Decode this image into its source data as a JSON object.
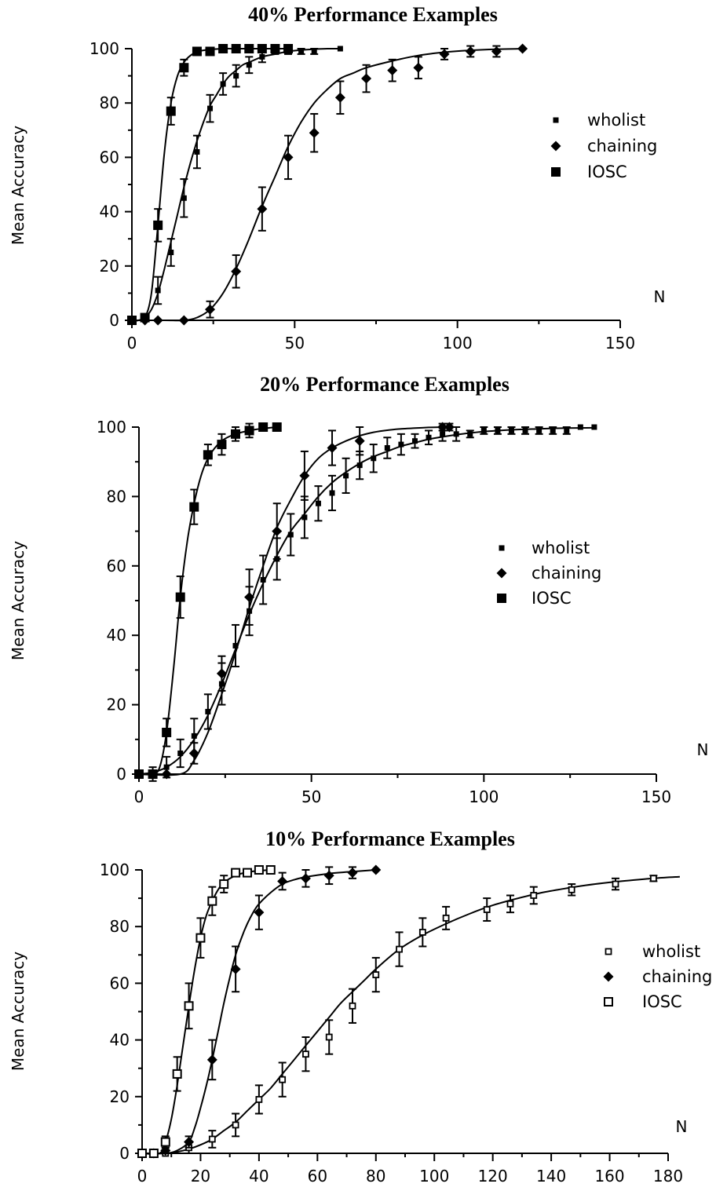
{
  "chart_data": [
    {
      "type": "scatter",
      "title": "40% Performance Examples",
      "xlabel": "N",
      "ylabel": "Mean Accuracy",
      "xlim": [
        0,
        150
      ],
      "ylim": [
        0,
        100
      ],
      "xticks": [
        0,
        50,
        100,
        150
      ],
      "yticks": [
        0,
        20,
        40,
        60,
        80,
        100
      ],
      "legend_position": "right",
      "series": [
        {
          "name": "wholist",
          "marker": "small-square",
          "x": [
            0,
            4,
            8,
            12,
            16,
            20,
            24,
            28,
            32,
            36,
            40,
            44,
            48,
            52,
            56,
            64
          ],
          "y": [
            0,
            1,
            11,
            25,
            45,
            62,
            78,
            87,
            90,
            94,
            97,
            99,
            99,
            99,
            99,
            100
          ],
          "err": [
            0,
            1,
            5,
            5,
            7,
            6,
            5,
            4,
            4,
            3,
            2,
            1,
            1,
            1,
            1,
            0
          ],
          "fit_x": [
            0,
            2,
            4,
            6,
            8,
            10,
            12,
            14,
            16,
            18,
            20,
            22,
            24,
            26,
            28,
            30,
            32,
            34,
            36,
            40,
            44,
            48,
            52,
            56,
            60,
            64
          ],
          "fit_y": [
            0,
            0,
            1,
            4,
            10,
            19,
            29,
            39,
            49,
            58,
            66,
            73,
            79,
            83,
            87,
            90,
            92,
            94,
            95,
            97,
            98,
            99,
            99.5,
            99.8,
            100,
            100
          ]
        },
        {
          "name": "chaining",
          "marker": "diamond",
          "x": [
            0,
            4,
            8,
            16,
            24,
            32,
            40,
            48,
            56,
            64,
            72,
            80,
            88,
            96,
            104,
            112,
            120
          ],
          "y": [
            0,
            0,
            0,
            0,
            4,
            18,
            41,
            60,
            69,
            82,
            89,
            92,
            93,
            98,
            99,
            99,
            100
          ],
          "err": [
            0,
            0,
            0,
            0,
            3,
            6,
            8,
            8,
            7,
            6,
            5,
            4,
            4,
            2,
            2,
            2,
            0
          ],
          "fit_x": [
            0,
            10,
            16,
            20,
            24,
            28,
            32,
            36,
            40,
            44,
            48,
            52,
            56,
            60,
            64,
            68,
            72,
            80,
            88,
            96,
            104,
            112,
            120
          ],
          "fit_y": [
            0,
            0,
            0,
            1,
            4,
            10,
            19,
            30,
            42,
            53,
            64,
            73,
            80,
            85,
            89,
            91,
            93,
            95.5,
            97.5,
            98.7,
            99.4,
            99.8,
            100
          ]
        },
        {
          "name": "IOSC",
          "marker": "square",
          "x": [
            0,
            4,
            8,
            12,
            16,
            20,
            24,
            28,
            32,
            36,
            40,
            44,
            48
          ],
          "y": [
            0,
            1,
            35,
            77,
            93,
            99,
            99,
            100,
            100,
            100,
            100,
            100,
            100
          ],
          "err": [
            0,
            1,
            6,
            5,
            3,
            1,
            1,
            0,
            0,
            0,
            0,
            0,
            0
          ],
          "fit_x": [
            0,
            2,
            4,
            6,
            8,
            10,
            12,
            14,
            16,
            18,
            20,
            22,
            24,
            28,
            32,
            36,
            40,
            44,
            48
          ],
          "fit_y": [
            0,
            0,
            1,
            10,
            35,
            62,
            80,
            90,
            95,
            97.5,
            98.8,
            99.4,
            99.7,
            100,
            100,
            100,
            100,
            100,
            100
          ]
        }
      ]
    },
    {
      "type": "scatter",
      "title": "20% Performance Examples",
      "xlabel": "N",
      "ylabel": "Mean Accuracy",
      "xlim": [
        0,
        150
      ],
      "ylim": [
        0,
        100
      ],
      "xticks": [
        0,
        50,
        100,
        150
      ],
      "yticks": [
        0,
        20,
        40,
        60,
        80,
        100
      ],
      "legend_position": "right",
      "series": [
        {
          "name": "wholist",
          "marker": "small-square",
          "x": [
            0,
            4,
            8,
            12,
            16,
            20,
            24,
            28,
            32,
            36,
            40,
            44,
            48,
            52,
            56,
            60,
            64,
            68,
            72,
            76,
            80,
            84,
            88,
            92,
            96,
            100,
            104,
            108,
            112,
            116,
            120,
            124,
            128,
            132
          ],
          "y": [
            0,
            0,
            2,
            6,
            11,
            18,
            26,
            37,
            47,
            56,
            62,
            69,
            74,
            78,
            81,
            86,
            89,
            91,
            94,
            95,
            96,
            97,
            98,
            98,
            98,
            99,
            99,
            99,
            99,
            99,
            99,
            99,
            100,
            100
          ],
          "err": [
            0,
            1,
            3,
            4,
            5,
            5,
            6,
            6,
            7,
            7,
            6,
            6,
            6,
            5,
            5,
            5,
            4,
            4,
            3,
            3,
            2,
            2,
            2,
            2,
            1,
            1,
            1,
            1,
            1,
            1,
            1,
            1,
            0,
            0
          ],
          "fit_x": [
            0,
            4,
            8,
            12,
            16,
            20,
            24,
            28,
            32,
            36,
            40,
            44,
            48,
            52,
            56,
            60,
            64,
            68,
            72,
            76,
            80,
            84,
            88,
            92,
            96,
            100,
            108,
            116,
            124,
            132
          ],
          "fit_y": [
            0,
            0.5,
            2,
            5,
            10,
            17,
            26,
            36,
            46,
            55,
            63,
            70,
            75,
            80,
            84,
            87,
            89.5,
            91.5,
            93,
            94.5,
            95.5,
            96.5,
            97.2,
            97.8,
            98.3,
            98.7,
            99.2,
            99.5,
            99.7,
            99.8
          ]
        },
        {
          "name": "chaining",
          "marker": "diamond",
          "x": [
            0,
            4,
            8,
            16,
            24,
            32,
            40,
            48,
            56,
            64,
            88,
            90
          ],
          "y": [
            0,
            0,
            0,
            6,
            29,
            51,
            70,
            86,
            94,
            96,
            100,
            100
          ],
          "err": [
            0,
            0,
            0,
            3,
            5,
            8,
            8,
            7,
            5,
            4,
            1,
            1
          ],
          "fit_x": [
            0,
            12,
            16,
            20,
            24,
            28,
            32,
            36,
            40,
            44,
            48,
            52,
            56,
            60,
            64,
            68,
            72,
            76,
            80,
            84,
            88,
            90
          ],
          "fit_y": [
            0,
            0,
            4,
            12,
            23,
            35,
            48,
            60,
            71,
            79,
            86,
            91,
            94,
            96,
            97.5,
            98.5,
            99.1,
            99.5,
            99.7,
            99.9,
            100,
            100
          ]
        },
        {
          "name": "IOSC",
          "marker": "square",
          "x": [
            0,
            4,
            8,
            12,
            16,
            20,
            24,
            28,
            32,
            36,
            40
          ],
          "y": [
            0,
            0,
            12,
            51,
            77,
            92,
            95,
            98,
            99,
            100,
            100
          ],
          "err": [
            0,
            2,
            4,
            6,
            5,
            3,
            3,
            2,
            2,
            1,
            1
          ],
          "fit_x": [
            0,
            4,
            6,
            8,
            10,
            12,
            14,
            16,
            18,
            20,
            22,
            24,
            26,
            28,
            32,
            36,
            40
          ],
          "fit_y": [
            0,
            0,
            2,
            12,
            30,
            51,
            67,
            78,
            86,
            91,
            94,
            96,
            97.2,
            98,
            99,
            99.6,
            100
          ]
        }
      ]
    },
    {
      "type": "scatter",
      "title": "10% Performance Examples",
      "xlabel": "N",
      "ylabel": "Mean Accuracy",
      "xlim": [
        0,
        180
      ],
      "ylim": [
        0,
        100
      ],
      "xticks": [
        0,
        20,
        40,
        60,
        80,
        100,
        120,
        140,
        160,
        180
      ],
      "yticks": [
        0,
        20,
        40,
        60,
        80,
        100
      ],
      "legend_position": "right",
      "series": [
        {
          "name": "wholist",
          "marker": "small-open-square",
          "x": [
            0,
            4,
            8,
            16,
            24,
            32,
            40,
            48,
            56,
            64,
            72,
            80,
            88,
            96,
            104,
            118,
            126,
            134,
            147,
            162,
            175
          ],
          "y": [
            0,
            0,
            0,
            2,
            5,
            10,
            19,
            26,
            35,
            41,
            52,
            63,
            72,
            78,
            83,
            86,
            88,
            91,
            93,
            95,
            97
          ],
          "err": [
            0,
            0,
            0,
            2,
            3,
            4,
            5,
            6,
            6,
            6,
            6,
            6,
            6,
            5,
            4,
            4,
            3,
            3,
            2,
            2,
            1
          ],
          "fit_x": [
            0,
            8,
            12,
            16,
            20,
            24,
            28,
            32,
            36,
            40,
            44,
            48,
            52,
            56,
            60,
            64,
            68,
            72,
            76,
            80,
            88,
            96,
            104,
            112,
            120,
            128,
            136,
            144,
            152,
            160,
            168,
            176,
            184
          ],
          "fit_y": [
            0,
            0,
            0.5,
            1.5,
            3,
            5,
            8,
            11,
            15,
            19,
            23,
            28,
            33,
            38,
            43,
            48,
            53,
            57,
            61,
            65,
            72,
            77,
            81,
            84.5,
            87.5,
            89.8,
            91.8,
            93.3,
            94.6,
            95.6,
            96.4,
            97.1,
            97.6
          ]
        },
        {
          "name": "chaining",
          "marker": "diamond",
          "x": [
            0,
            4,
            8,
            16,
            24,
            32,
            40,
            48,
            56,
            64,
            72,
            80
          ],
          "y": [
            0,
            0,
            1,
            4,
            33,
            65,
            85,
            96,
            97,
            98,
            99,
            100
          ],
          "err": [
            0,
            0,
            1,
            2,
            7,
            8,
            6,
            3,
            3,
            3,
            2,
            0
          ],
          "fit_x": [
            0,
            8,
            12,
            16,
            18,
            20,
            22,
            24,
            26,
            28,
            30,
            32,
            34,
            36,
            38,
            40,
            44,
            48,
            52,
            56,
            64,
            72,
            80
          ],
          "fit_y": [
            0,
            0,
            1,
            4,
            9,
            16,
            24,
            33,
            43,
            53,
            62,
            70,
            76,
            81,
            85,
            88,
            92,
            95,
            96.5,
            97.5,
            98.7,
            99.4,
            100
          ]
        },
        {
          "name": "IOSC",
          "marker": "open-square",
          "x": [
            0,
            4,
            8,
            12,
            16,
            20,
            24,
            28,
            32,
            36,
            40,
            44
          ],
          "y": [
            0,
            0,
            4,
            28,
            52,
            76,
            89,
            95,
            99,
            99,
            100,
            100
          ],
          "err": [
            0,
            0,
            2,
            6,
            8,
            7,
            5,
            3,
            1,
            1,
            0,
            0
          ],
          "fit_x": [
            0,
            6,
            8,
            10,
            12,
            14,
            16,
            18,
            20,
            22,
            24,
            26,
            28,
            32,
            36,
            40,
            44
          ],
          "fit_y": [
            0,
            0,
            4,
            12,
            24,
            38,
            52,
            65,
            76,
            84,
            89,
            93,
            95.5,
            98,
            99.2,
            99.7,
            100
          ]
        }
      ]
    }
  ]
}
